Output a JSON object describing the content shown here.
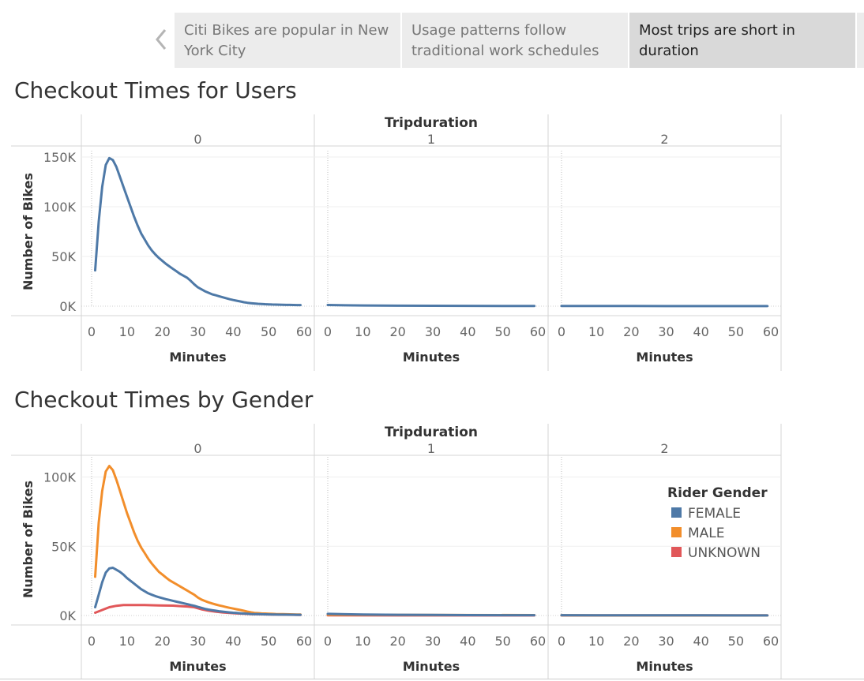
{
  "story": {
    "prev_icon": "chevron-left-icon",
    "points": [
      {
        "label": "Citi Bikes are popular in New York City",
        "active": false
      },
      {
        "label": "Usage patterns follow traditional work schedules",
        "active": false
      },
      {
        "label": "Most trips are short in duration",
        "active": true
      }
    ]
  },
  "colors": {
    "FEMALE": "#4e79a7",
    "MALE": "#f28e2b",
    "UNKNOWN": "#e15759",
    "grid": "#efefef",
    "divider": "#d4d4d4"
  },
  "chart_data": [
    {
      "type": "line",
      "title": "Checkout Times for Users",
      "column_header": "Tripduration",
      "panels": [
        "0",
        "1",
        "2"
      ],
      "xlabel": "Minutes",
      "ylabel": "Number of Bikes",
      "xlim": [
        0,
        60
      ],
      "ylim": [
        0,
        150000
      ],
      "xticks": [
        0,
        10,
        20,
        30,
        40,
        50,
        60
      ],
      "xtick_labels": [
        "0",
        "10",
        "20",
        "30",
        "40",
        "50",
        "60"
      ],
      "yticks": [
        0,
        50000,
        100000,
        150000
      ],
      "ytick_labels": [
        "0K",
        "50K",
        "100K",
        "150K"
      ],
      "grid": true,
      "series": [
        {
          "color_key": "FEMALE",
          "panel_values": [
            {
              "x": [
                1,
                2,
                3,
                4,
                5,
                6,
                7,
                8,
                9,
                10,
                11,
                12,
                13,
                14,
                15,
                16,
                17,
                18,
                19,
                20,
                21,
                22,
                23,
                24,
                25,
                26,
                27,
                28,
                29,
                30,
                31,
                32,
                33,
                34,
                35,
                36,
                37,
                38,
                39,
                40,
                41,
                42,
                43,
                44,
                45,
                46,
                47,
                48,
                49,
                50,
                51,
                52,
                53,
                54,
                55,
                56,
                57,
                58,
                59
              ],
              "y": [
                36000,
                85000,
                120000,
                142000,
                149000,
                147000,
                140000,
                130000,
                120000,
                110000,
                100000,
                90000,
                81000,
                73000,
                67000,
                61000,
                56000,
                52000,
                48500,
                45500,
                42500,
                40000,
                37500,
                35000,
                32500,
                30500,
                28500,
                25500,
                22000,
                19000,
                17000,
                15000,
                13500,
                12000,
                11000,
                10000,
                9000,
                8000,
                7000,
                6200,
                5500,
                4800,
                4000,
                3400,
                3000,
                2700,
                2400,
                2200,
                2000,
                1850,
                1700,
                1600,
                1500,
                1400,
                1300,
                1250,
                1200,
                1150,
                1100
              ]
            },
            {
              "x": [
                0,
                5,
                10,
                20,
                30,
                40,
                50,
                59
              ],
              "y": [
                1200,
                900,
                700,
                500,
                400,
                300,
                250,
                200
              ]
            },
            {
              "x": [
                0,
                10,
                20,
                30,
                40,
                50,
                59
              ],
              "y": [
                200,
                150,
                120,
                100,
                90,
                80,
                70
              ]
            }
          ]
        }
      ]
    },
    {
      "type": "line",
      "title": "Checkout Times by Gender",
      "column_header": "Tripduration",
      "panels": [
        "0",
        "1",
        "2"
      ],
      "xlabel": "Minutes",
      "ylabel": "Number of Bikes",
      "xlim": [
        0,
        60
      ],
      "ylim": [
        0,
        110000
      ],
      "xticks": [
        0,
        10,
        20,
        30,
        40,
        50,
        60
      ],
      "xtick_labels": [
        "0",
        "10",
        "20",
        "30",
        "40",
        "50",
        "60"
      ],
      "yticks": [
        0,
        50000,
        100000
      ],
      "ytick_labels": [
        "0K",
        "50K",
        "100K"
      ],
      "grid": true,
      "legend": {
        "title": "Rider Gender",
        "placement": "right",
        "entries": [
          "FEMALE",
          "MALE",
          "UNKNOWN"
        ]
      },
      "series": [
        {
          "name": "UNKNOWN",
          "panel_values": [
            {
              "x": [
                1,
                3,
                5,
                7,
                9,
                11,
                13,
                15,
                17,
                19,
                21,
                23,
                25,
                27,
                29,
                31,
                33,
                35,
                37,
                39,
                41,
                43,
                45,
                47,
                49,
                51,
                53,
                55,
                57,
                59
              ],
              "y": [
                2000,
                4000,
                6000,
                7000,
                7500,
                7600,
                7600,
                7500,
                7400,
                7300,
                7200,
                7100,
                6800,
                6500,
                6000,
                4500,
                3500,
                2800,
                2200,
                1800,
                1500,
                1300,
                1000,
                900,
                800,
                700,
                600,
                550,
                500,
                450
              ]
            },
            {
              "x": [
                0,
                59
              ],
              "y": [
                100,
                80
              ]
            },
            {
              "x": [
                0,
                59
              ],
              "y": [
                50,
                40
              ]
            }
          ]
        },
        {
          "name": "MALE",
          "panel_values": [
            {
              "x": [
                1,
                2,
                3,
                4,
                5,
                6,
                7,
                8,
                9,
                10,
                11,
                12,
                13,
                14,
                15,
                16,
                17,
                18,
                19,
                20,
                21,
                22,
                23,
                24,
                25,
                26,
                27,
                28,
                29,
                30,
                31,
                32,
                33,
                34,
                35,
                36,
                37,
                38,
                39,
                40,
                41,
                42,
                43,
                44,
                45,
                46,
                47,
                48,
                49,
                50,
                51,
                52,
                53,
                54,
                55,
                56,
                57,
                58,
                59
              ],
              "y": [
                28000,
                67000,
                90000,
                104000,
                108000,
                105000,
                98000,
                90000,
                82000,
                74000,
                67000,
                60000,
                54000,
                49000,
                45000,
                41000,
                37500,
                34500,
                31500,
                29500,
                27500,
                25500,
                24000,
                22500,
                21000,
                19500,
                18000,
                16500,
                15000,
                13000,
                11500,
                10500,
                9500,
                8700,
                8000,
                7300,
                6700,
                6100,
                5500,
                5000,
                4500,
                4000,
                3400,
                2800,
                2300,
                1900,
                1700,
                1500,
                1400,
                1300,
                1200,
                1100,
                1000,
                950,
                900,
                850,
                800,
                750,
                700
              ]
            },
            {
              "x": [
                0,
                59
              ],
              "y": [
                500,
                300
              ]
            },
            {
              "x": [
                0,
                59
              ],
              "y": [
                100,
                80
              ]
            }
          ]
        },
        {
          "name": "FEMALE",
          "panel_values": [
            {
              "x": [
                1,
                2,
                3,
                4,
                5,
                6,
                7,
                8,
                9,
                10,
                11,
                12,
                13,
                14,
                15,
                16,
                17,
                18,
                19,
                20,
                21,
                22,
                23,
                24,
                25,
                26,
                27,
                28,
                29,
                30,
                31,
                32,
                33,
                34,
                35,
                36,
                37,
                38,
                39,
                40,
                41,
                42,
                43,
                44,
                45,
                46,
                47,
                48,
                49,
                50,
                51,
                52,
                53,
                54,
                55,
                56,
                57,
                58,
                59
              ],
              "y": [
                6000,
                15000,
                24000,
                31000,
                34000,
                34500,
                33000,
                31500,
                29500,
                27000,
                25000,
                23000,
                21000,
                19000,
                17500,
                16000,
                15000,
                14000,
                13200,
                12500,
                11800,
                11200,
                10600,
                10000,
                9400,
                8800,
                8200,
                7600,
                7000,
                6200,
                5500,
                4800,
                4300,
                3900,
                3500,
                3100,
                2800,
                2500,
                2200,
                2000,
                1800,
                1600,
                1400,
                1250,
                1100,
                1000,
                950,
                900,
                850,
                800,
                750,
                700,
                650,
                620,
                600,
                580,
                560,
                540,
                520
              ]
            },
            {
              "x": [
                0,
                5,
                10,
                20,
                30,
                40,
                50,
                59
              ],
              "y": [
                1200,
                900,
                700,
                500,
                400,
                300,
                250,
                200
              ]
            },
            {
              "x": [
                0,
                10,
                20,
                30,
                40,
                50,
                59
              ],
              "y": [
                200,
                150,
                120,
                100,
                90,
                80,
                70
              ]
            }
          ]
        }
      ]
    }
  ]
}
